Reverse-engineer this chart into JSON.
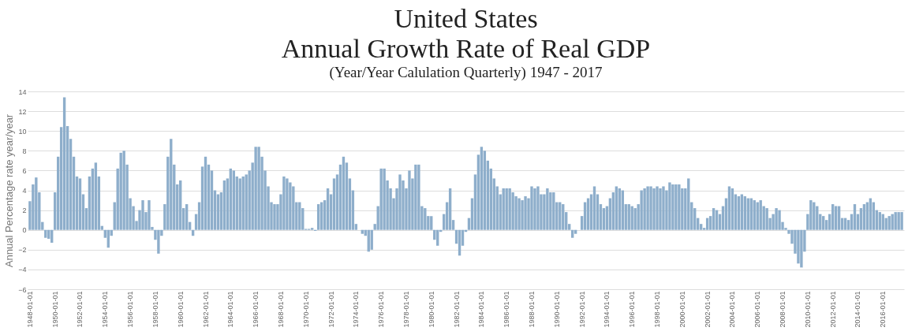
{
  "chart_data": {
    "type": "bar",
    "title": "United States\nAnnual Growth Rate of Real GDP",
    "subtitle": "(Year/Year Calulation Quarterly)  1947 - 2017",
    "ylabel": "Annual Percentage rate year/year",
    "categories": [
      "1948-01-01",
      null,
      null,
      null,
      null,
      null,
      null,
      null,
      "1950-01-01",
      null,
      null,
      null,
      null,
      null,
      null,
      null,
      "1952-01-01",
      null,
      null,
      null,
      null,
      null,
      null,
      null,
      "1954-01-01",
      null,
      null,
      null,
      null,
      null,
      null,
      null,
      "1956-01-01",
      null,
      null,
      null,
      null,
      null,
      null,
      null,
      "1958-01-01",
      null,
      null,
      null,
      null,
      null,
      null,
      null,
      "1960-01-01",
      null,
      null,
      null,
      null,
      null,
      null,
      null,
      "1962-01-01",
      null,
      null,
      null,
      null,
      null,
      null,
      null,
      "1964-01-01",
      null,
      null,
      null,
      null,
      null,
      null,
      null,
      "1966-01-01",
      null,
      null,
      null,
      null,
      null,
      null,
      null,
      "1968-01-01",
      null,
      null,
      null,
      null,
      null,
      null,
      null,
      "1970-01-01",
      null,
      null,
      null,
      null,
      null,
      null,
      null,
      "1972-01-01",
      null,
      null,
      null,
      null,
      null,
      null,
      null,
      "1974-01-01",
      null,
      null,
      null,
      null,
      null,
      null,
      null,
      "1976-01-01",
      null,
      null,
      null,
      null,
      null,
      null,
      null,
      "1978-01-01",
      null,
      null,
      null,
      null,
      null,
      null,
      null,
      "1980-01-01",
      null,
      null,
      null,
      null,
      null,
      null,
      null,
      "1982-01-01",
      null,
      null,
      null,
      null,
      null,
      null,
      null,
      "1984-01-01",
      null,
      null,
      null,
      null,
      null,
      null,
      null,
      "1986-01-01",
      null,
      null,
      null,
      null,
      null,
      null,
      null,
      "1988-01-01",
      null,
      null,
      null,
      null,
      null,
      null,
      null,
      "1990-01-01",
      null,
      null,
      null,
      null,
      null,
      null,
      null,
      "1992-01-01",
      null,
      null,
      null,
      null,
      null,
      null,
      null,
      "1994-01-01",
      null,
      null,
      null,
      null,
      null,
      null,
      null,
      "1996-01-01",
      null,
      null,
      null,
      null,
      null,
      null,
      null,
      "1998-01-01",
      null,
      null,
      null,
      null,
      null,
      null,
      null,
      "2000-01-01",
      null,
      null,
      null,
      null,
      null,
      null,
      null,
      "2002-01-01",
      null,
      null,
      null,
      null,
      null,
      null,
      null,
      "2004-01-01",
      null,
      null,
      null,
      null,
      null,
      null,
      null,
      "2006-01-01",
      null,
      null,
      null,
      null,
      null,
      null,
      null,
      "2008-01-01",
      null,
      null,
      null,
      null,
      null,
      null,
      null,
      "2010-01-01",
      null,
      null,
      null,
      null,
      null,
      null,
      null,
      "2012-01-01",
      null,
      null,
      null,
      null,
      null,
      null,
      null,
      "2014-01-01",
      null,
      null,
      null,
      null,
      null,
      null,
      null,
      "2016-01-01",
      null,
      null,
      null,
      null,
      null,
      null
    ],
    "values": [
      2.9,
      4.6,
      5.3,
      3.8,
      0.8,
      -0.8,
      -0.9,
      -1.3,
      3.8,
      7.4,
      10.4,
      13.4,
      10.5,
      9.2,
      7.4,
      5.4,
      5.2,
      3.6,
      2.2,
      5.4,
      6.2,
      6.8,
      5.4,
      0.4,
      -0.8,
      -1.8,
      -0.6,
      2.8,
      6.2,
      7.8,
      8.0,
      6.6,
      3.2,
      2.4,
      0.9,
      2.0,
      3.0,
      1.8,
      3.0,
      0.3,
      -1.0,
      -2.4,
      -0.6,
      2.6,
      7.4,
      9.2,
      6.6,
      4.6,
      5.0,
      2.2,
      2.6,
      0.8,
      -0.6,
      1.6,
      2.8,
      6.4,
      7.4,
      6.6,
      6.0,
      4.0,
      3.6,
      3.8,
      5.0,
      5.2,
      6.2,
      6.0,
      5.4,
      5.2,
      5.4,
      5.6,
      6.0,
      6.8,
      8.4,
      8.4,
      7.4,
      6.0,
      4.4,
      2.8,
      2.6,
      2.6,
      3.6,
      5.4,
      5.2,
      4.8,
      4.4,
      2.8,
      2.8,
      2.2,
      0.1,
      0.1,
      0.2,
      -0.1,
      2.6,
      2.8,
      3.0,
      4.2,
      3.6,
      5.2,
      5.6,
      6.6,
      7.4,
      6.8,
      5.2,
      4.0,
      0.6,
      0.0,
      -0.4,
      -0.6,
      -2.2,
      -2.0,
      0.6,
      2.4,
      6.2,
      6.2,
      5.0,
      4.2,
      3.2,
      4.2,
      5.6,
      5.0,
      4.2,
      6.0,
      5.2,
      6.6,
      6.6,
      2.4,
      2.2,
      1.4,
      1.4,
      -1.0,
      -1.6,
      -0.2,
      1.6,
      2.8,
      4.2,
      1.0,
      -1.4,
      -2.6,
      -1.6,
      -0.2,
      1.2,
      3.2,
      5.6,
      7.6,
      8.4,
      8.0,
      7.0,
      6.2,
      5.2,
      4.4,
      3.6,
      4.2,
      4.2,
      4.2,
      3.8,
      3.4,
      3.2,
      3.0,
      3.4,
      3.2,
      4.4,
      4.2,
      4.4,
      3.6,
      3.6,
      4.2,
      3.8,
      3.8,
      2.8,
      2.8,
      2.6,
      1.8,
      0.6,
      -0.8,
      -0.4,
      0.0,
      1.4,
      2.8,
      3.2,
      3.6,
      4.4,
      3.6,
      2.6,
      2.2,
      2.4,
      3.2,
      3.8,
      4.4,
      4.2,
      4.0,
      2.6,
      2.6,
      2.4,
      2.2,
      2.6,
      4.0,
      4.2,
      4.4,
      4.4,
      4.2,
      4.4,
      4.2,
      4.4,
      4.0,
      4.8,
      4.6,
      4.6,
      4.6,
      4.2,
      4.2,
      5.2,
      2.8,
      2.2,
      1.2,
      0.6,
      0.2,
      1.2,
      1.4,
      2.2,
      2.0,
      1.6,
      2.4,
      3.2,
      4.4,
      4.2,
      3.6,
      3.4,
      3.6,
      3.4,
      3.2,
      3.2,
      3.0,
      2.8,
      3.0,
      2.4,
      2.2,
      1.2,
      1.6,
      2.2,
      2.0,
      0.8,
      0.2,
      -0.4,
      -1.4,
      -2.4,
      -3.4,
      -3.8,
      -2.2,
      1.6,
      3.0,
      2.8,
      2.4,
      1.6,
      1.4,
      1.0,
      1.6,
      2.6,
      2.4,
      2.4,
      1.2,
      1.2,
      1.0,
      1.6,
      2.6,
      1.6,
      2.2,
      2.6,
      2.8,
      3.2,
      2.8,
      2.0,
      1.8,
      1.6,
      1.2,
      1.4,
      1.6,
      1.8,
      1.8,
      1.8
    ],
    "color": "#8eaecb",
    "ylim": [
      -6,
      14
    ],
    "yticks": [
      -6,
      -4,
      -2,
      0,
      2,
      4,
      6,
      8,
      10,
      12,
      14
    ],
    "grid": "y"
  }
}
